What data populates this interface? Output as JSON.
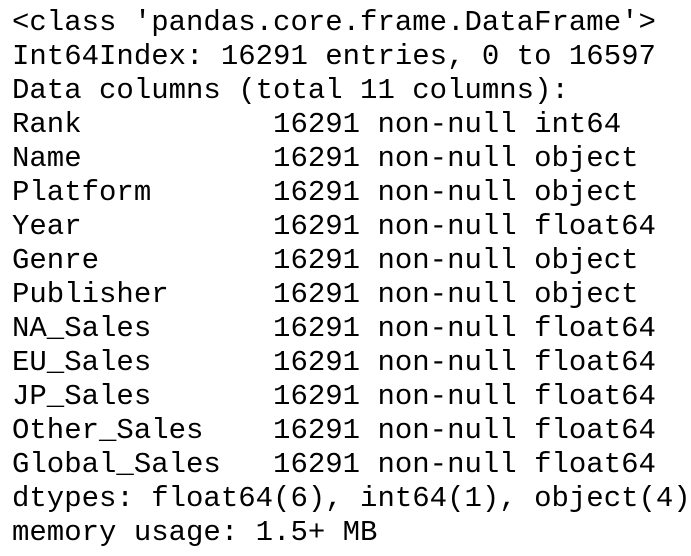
{
  "output": {
    "lines": [
      "<class 'pandas.core.frame.DataFrame'>",
      "Int64Index: 16291 entries, 0 to 16597",
      "Data columns (total 11 columns):",
      "Rank           16291 non-null int64",
      "Name           16291 non-null object",
      "Platform       16291 non-null object",
      "Year           16291 non-null float64",
      "Genre          16291 non-null object",
      "Publisher      16291 non-null object",
      "NA_Sales       16291 non-null float64",
      "EU_Sales       16291 non-null float64",
      "JP_Sales       16291 non-null float64",
      "Other_Sales    16291 non-null float64",
      "Global_Sales   16291 non-null float64",
      "dtypes: float64(6), int64(1), object(4)",
      "memory usage: 1.5+ MB"
    ]
  }
}
